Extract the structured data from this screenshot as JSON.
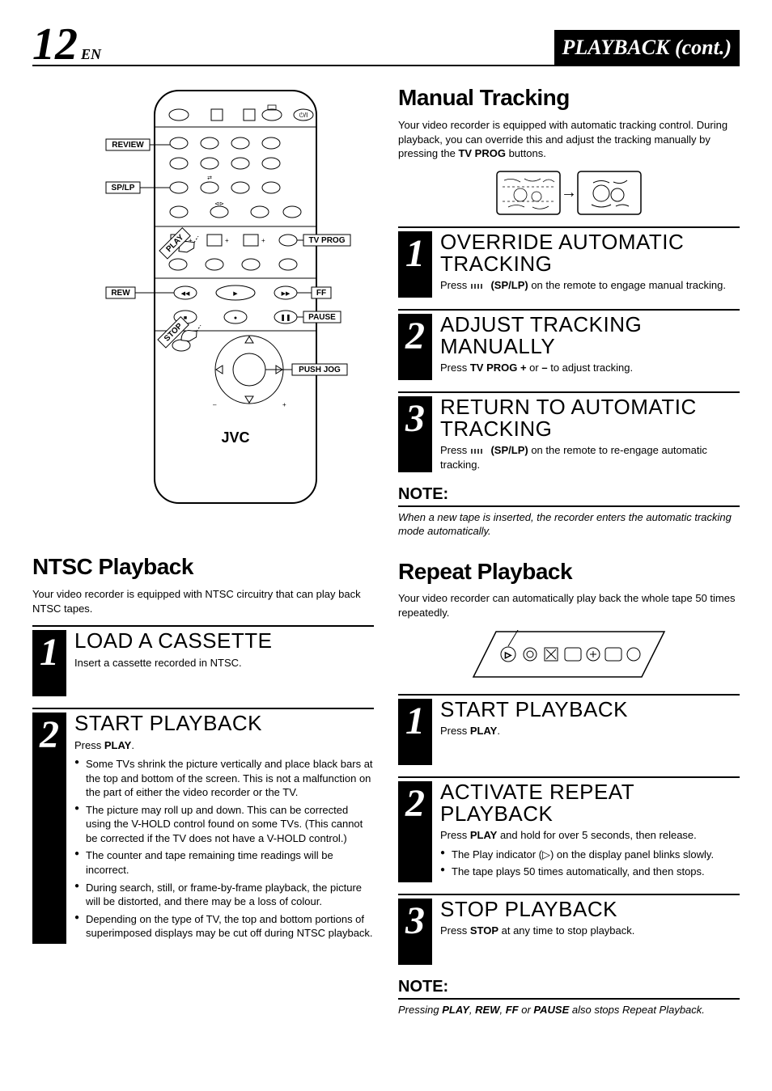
{
  "header": {
    "page_number": "12",
    "lang": "EN",
    "title": "PLAYBACK (cont.)"
  },
  "remote": {
    "labels": {
      "review": "REVIEW",
      "splp": "SP/LP",
      "play": "PLAY",
      "rew": "REW",
      "stop": "STOP",
      "tvprog": "TV PROG",
      "ff": "FF",
      "pause": "PAUSE",
      "pushjog": "PUSH JOG",
      "brand": "JVC"
    }
  },
  "ntsc": {
    "heading": "NTSC Playback",
    "intro": "Your video recorder is equipped with NTSC circuitry that can play back NTSC tapes.",
    "steps": [
      {
        "num": "1",
        "title": "LOAD A CASSETTE",
        "body_html": "Insert a cassette recorded in NTSC."
      },
      {
        "num": "2",
        "title": "START PLAYBACK",
        "body_html": "Press <b>PLAY</b>.",
        "bullets": [
          "Some TVs shrink the picture vertically and place black bars at the top and bottom of the screen. This is not a malfunction on the part of either the video recorder or the TV.",
          "The picture may roll up and down. This can be corrected using the V-HOLD control found on some TVs. (This cannot be corrected if the TV does not have a V-HOLD control.)",
          "The counter and tape remaining time readings will be incorrect.",
          "During search, still, or frame-by-frame playback, the picture will be distorted, and there may be a loss of colour.",
          "Depending on the type of TV, the top and bottom portions of superimposed displays may be cut off during NTSC playback."
        ]
      }
    ]
  },
  "manual": {
    "heading": "Manual Tracking",
    "intro_html": "Your video recorder is equipped with automatic tracking control. During playback, you can override this and adjust the tracking manually by pressing the <b>TV PROG</b> buttons.",
    "steps": [
      {
        "num": "1",
        "title": "OVERRIDE AUTOMATIC TRACKING",
        "body_html": "Press <svg class='sp-icon-inline' width='22' height='10'><g stroke='#000' stroke-width='1.5'><line x1='2' y1='2' x2='2' y2='8'/><line x1='6' y1='2' x2='6' y2='8'/><line x1='10' y1='2' x2='10' y2='8'/><line x1='14' y1='2' x2='14' y2='8'/></g></svg> <b>(SP/LP)</b> on the remote to engage manual tracking."
      },
      {
        "num": "2",
        "title": "ADJUST TRACKING MANUALLY",
        "body_html": "Press <b>TV PROG +</b> or <b>–</b> to adjust tracking."
      },
      {
        "num": "3",
        "title": "RETURN TO AUTOMATIC TRACKING",
        "body_html": "Press <svg class='sp-icon-inline' width='22' height='10'><g stroke='#000' stroke-width='1.5'><line x1='2' y1='2' x2='2' y2='8'/><line x1='6' y1='2' x2='6' y2='8'/><line x1='10' y1='2' x2='10' y2='8'/><line x1='14' y1='2' x2='14' y2='8'/></g></svg> <b>(SP/LP)</b> on the remote to re-engage automatic tracking."
      }
    ],
    "note_heading": "NOTE:",
    "note_text": "When a new tape is inserted, the recorder enters the automatic tracking mode automatically."
  },
  "repeat": {
    "heading": "Repeat Playback",
    "intro": "Your video recorder can automatically play back the whole tape 50 times repeatedly.",
    "steps": [
      {
        "num": "1",
        "title": "START PLAYBACK",
        "body_html": "Press <b>PLAY</b>."
      },
      {
        "num": "2",
        "title": "ACTIVATE REPEAT PLAYBACK",
        "body_html": "Press <b>PLAY</b> and hold for over 5 seconds, then release.",
        "bullets": [
          "The Play indicator (▷) on the display panel blinks slowly.",
          "The tape plays 50 times automatically, and then stops."
        ]
      },
      {
        "num": "3",
        "title": "STOP PLAYBACK",
        "body_html": "Press <b>STOP</b> at any time to stop playback."
      }
    ],
    "note_heading": "NOTE:",
    "note_text_html": "Pressing <b>PLAY</b>, <b>REW</b>, <b>FF</b> or <b>PAUSE</b> also stops Repeat Playback."
  },
  "colors": {
    "black": "#000000",
    "white": "#ffffff"
  }
}
